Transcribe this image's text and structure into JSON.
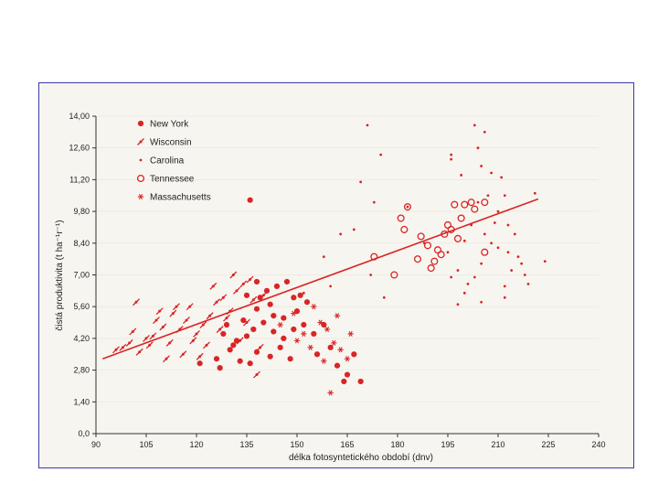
{
  "chart_data": {
    "type": "scatter",
    "title": "",
    "xlabel": "délka fotosyntetického období (dnv)",
    "ylabel": "čistá produktivita (t ha⁻¹r⁻¹)",
    "xlim": [
      90,
      240
    ],
    "ylim": [
      0,
      14
    ],
    "x_ticks": [
      "90",
      "105",
      "120",
      "135",
      "150",
      "165",
      "180",
      "195",
      "210",
      "225",
      "240"
    ],
    "y_ticks": [
      "0,0",
      "1,40",
      "2,80",
      "4,20",
      "5,60",
      "7,00",
      "8,40",
      "9,80",
      "11,20",
      "12,60",
      "14,00"
    ],
    "colors": {
      "series": "#d92525",
      "axis": "#333333",
      "background": "#f7f5f0",
      "frame": "#3a3aa8"
    },
    "regression_line": {
      "x": [
        92,
        222
      ],
      "y": [
        3.3,
        10.35
      ]
    },
    "series": [
      {
        "name": "New York",
        "marker": "filled-circle",
        "points": [
          [
            127,
            2.9
          ],
          [
            133,
            3.2
          ],
          [
            136,
            3.1
          ],
          [
            138,
            3.6
          ],
          [
            142,
            3.4
          ],
          [
            145,
            3.8
          ],
          [
            130,
            3.7
          ],
          [
            135,
            4.3
          ],
          [
            128,
            4.4
          ],
          [
            132,
            4.1
          ],
          [
            137,
            4.6
          ],
          [
            140,
            4.9
          ],
          [
            143,
            4.5
          ],
          [
            146,
            4.2
          ],
          [
            149,
            4.6
          ],
          [
            134,
            5.0
          ],
          [
            129,
            4.8
          ],
          [
            138,
            5.5
          ],
          [
            142,
            5.7
          ],
          [
            146,
            5.1
          ],
          [
            150,
            5.4
          ],
          [
            152,
            4.8
          ],
          [
            155,
            4.4
          ],
          [
            135,
            6.1
          ],
          [
            139,
            6.0
          ],
          [
            141,
            6.3
          ],
          [
            144,
            6.5
          ],
          [
            147,
            6.7
          ],
          [
            151,
            6.1
          ],
          [
            153,
            5.8
          ],
          [
            138,
            6.7
          ],
          [
            149,
            6.0
          ],
          [
            126,
            3.3
          ],
          [
            121,
            3.1
          ],
          [
            131,
            3.9
          ],
          [
            148,
            3.3
          ],
          [
            156,
            3.5
          ],
          [
            160,
            3.8
          ],
          [
            162,
            3.0
          ],
          [
            165,
            2.6
          ],
          [
            167,
            3.5
          ],
          [
            164,
            2.3
          ],
          [
            169,
            2.3
          ],
          [
            136,
            10.3
          ],
          [
            143,
            5.2
          ],
          [
            158,
            4.8
          ]
        ]
      },
      {
        "name": "Wisconsin",
        "marker": "dash-cross",
        "points": [
          [
            96,
            3.7
          ],
          [
            98,
            3.8
          ],
          [
            100,
            4.0
          ],
          [
            103,
            3.6
          ],
          [
            105,
            4.2
          ],
          [
            101,
            4.5
          ],
          [
            107,
            4.3
          ],
          [
            110,
            4.7
          ],
          [
            112,
            4.0
          ],
          [
            115,
            4.6
          ],
          [
            108,
            5.0
          ],
          [
            113,
            5.3
          ],
          [
            117,
            5.0
          ],
          [
            120,
            4.4
          ],
          [
            122,
            4.8
          ],
          [
            118,
            5.6
          ],
          [
            124,
            5.2
          ],
          [
            126,
            5.8
          ],
          [
            128,
            6.0
          ],
          [
            130,
            5.4
          ],
          [
            132,
            6.3
          ],
          [
            134,
            6.6
          ],
          [
            131,
            7.0
          ],
          [
            136,
            6.8
          ],
          [
            125,
            6.5
          ],
          [
            119,
            4.1
          ],
          [
            116,
            3.5
          ],
          [
            121,
            3.4
          ],
          [
            111,
            3.3
          ],
          [
            106,
            3.9
          ],
          [
            127,
            4.6
          ],
          [
            129,
            5.1
          ],
          [
            135,
            4.9
          ],
          [
            133,
            4.1
          ],
          [
            138,
            2.6
          ],
          [
            139,
            3.8
          ],
          [
            102,
            5.8
          ],
          [
            109,
            5.4
          ],
          [
            114,
            5.6
          ],
          [
            123,
            3.9
          ],
          [
            140,
            6.1
          ],
          [
            137,
            5.9
          ]
        ]
      },
      {
        "name": "Carolina",
        "marker": "small-dot",
        "points": [
          [
            171,
            13.6
          ],
          [
            175,
            12.3
          ],
          [
            169,
            11.1
          ],
          [
            173,
            10.2
          ],
          [
            167,
            9.0
          ],
          [
            163,
            8.8
          ],
          [
            160,
            6.5
          ],
          [
            152,
            6.2
          ],
          [
            158,
            7.8
          ],
          [
            176,
            6.0
          ],
          [
            172,
            7.0
          ],
          [
            183,
            10.0
          ],
          [
            188,
            8.4
          ],
          [
            196,
            12.3
          ],
          [
            199,
            11.4
          ],
          [
            203,
            13.6
          ],
          [
            206,
            13.3
          ],
          [
            205,
            11.8
          ],
          [
            208,
            11.5
          ],
          [
            211,
            11.3
          ],
          [
            204,
            10.2
          ],
          [
            207,
            10.5
          ],
          [
            210,
            9.8
          ],
          [
            212,
            10.5
          ],
          [
            213,
            9.2
          ],
          [
            215,
            8.8
          ],
          [
            202,
            9.2
          ],
          [
            200,
            8.5
          ],
          [
            195,
            8.0
          ],
          [
            198,
            7.2
          ],
          [
            201,
            6.6
          ],
          [
            203,
            6.9
          ],
          [
            205,
            7.5
          ],
          [
            208,
            8.4
          ],
          [
            212,
            6.5
          ],
          [
            214,
            7.2
          ],
          [
            216,
            7.8
          ],
          [
            218,
            7.0
          ],
          [
            219,
            6.6
          ],
          [
            212,
            6.0
          ],
          [
            205,
            5.8
          ],
          [
            200,
            6.2
          ],
          [
            198,
            5.7
          ],
          [
            196,
            6.9
          ],
          [
            221,
            10.6
          ],
          [
            224,
            7.6
          ],
          [
            217,
            7.5
          ],
          [
            210,
            8.2
          ],
          [
            213,
            8.0
          ],
          [
            206,
            8.8
          ],
          [
            209,
            9.3
          ],
          [
            196,
            12.1
          ],
          [
            204,
            12.6
          ]
        ]
      },
      {
        "name": "Tennessee",
        "marker": "open-circle",
        "points": [
          [
            183,
            10.0
          ],
          [
            181,
            9.5
          ],
          [
            182,
            9.0
          ],
          [
            179,
            7.0
          ],
          [
            187,
            8.7
          ],
          [
            189,
            8.3
          ],
          [
            191,
            7.6
          ],
          [
            193,
            7.9
          ],
          [
            194,
            8.8
          ],
          [
            196,
            9.0
          ],
          [
            195,
            9.2
          ],
          [
            197,
            10.1
          ],
          [
            200,
            10.1
          ],
          [
            202,
            10.2
          ],
          [
            203,
            9.9
          ],
          [
            206,
            10.2
          ],
          [
            190,
            7.3
          ],
          [
            186,
            7.7
          ],
          [
            192,
            8.1
          ],
          [
            198,
            8.6
          ],
          [
            206,
            8.0
          ],
          [
            173,
            7.8
          ],
          [
            199,
            9.5
          ]
        ]
      },
      {
        "name": "Massachusetts",
        "marker": "asterisk",
        "points": [
          [
            145,
            4.8
          ],
          [
            149,
            5.3
          ],
          [
            152,
            4.4
          ],
          [
            155,
            5.6
          ],
          [
            157,
            4.9
          ],
          [
            159,
            4.6
          ],
          [
            161,
            4.0
          ],
          [
            163,
            3.7
          ],
          [
            165,
            3.3
          ],
          [
            162,
            5.2
          ],
          [
            154,
            3.8
          ],
          [
            158,
            3.2
          ],
          [
            150,
            4.1
          ],
          [
            160,
            1.8
          ],
          [
            166,
            4.4
          ]
        ]
      }
    ]
  }
}
